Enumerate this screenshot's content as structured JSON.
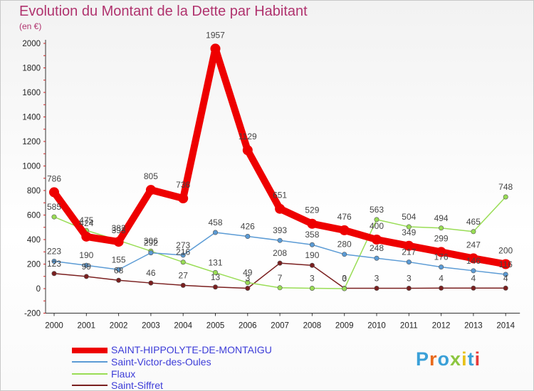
{
  "title": "Evolution du Montant de la Dette par Habitant",
  "subtitle": "(en €)",
  "brand": {
    "text": "Proxiti",
    "colors": [
      "#3aa0d8",
      "#e96a1a",
      "#3aa0d8",
      "#8cc63f",
      "#e8c21a",
      "#3aa0d8",
      "#e83a3a"
    ]
  },
  "chart_data": {
    "type": "line",
    "title": "Evolution du Montant de la Dette par Habitant",
    "subtitle": "(en €)",
    "xlabel": "",
    "ylabel": "",
    "x": [
      "2000",
      "2001",
      "2002",
      "2003",
      "2004",
      "2005",
      "2006",
      "2007",
      "2008",
      "2009",
      "2010",
      "2011",
      "2012",
      "2013",
      "2014"
    ],
    "ylim": [
      -200,
      2000
    ],
    "yticks": [
      -200,
      0,
      200,
      400,
      600,
      800,
      1000,
      1200,
      1400,
      1600,
      1800,
      2000
    ],
    "grid": false,
    "legend_position": "bottom-left",
    "series": [
      {
        "name": "SAINT-HIPPOLYTE-DE-MONTAIGU",
        "color": "#ee0000",
        "emphasis": true,
        "values": [
          786,
          424,
          382,
          805,
          736,
          1957,
          1129,
          651,
          529,
          476,
          400,
          349,
          299,
          247,
          200
        ]
      },
      {
        "name": "Saint-Victor-des-Oules",
        "color": "#5b9bd5",
        "emphasis": false,
        "values": [
          223,
          190,
          155,
          292,
          273,
          458,
          426,
          393,
          358,
          280,
          248,
          217,
          176,
          146,
          116
        ]
      },
      {
        "name": "Flaux",
        "color": "#99dd55",
        "emphasis": false,
        "values": [
          585,
          475,
          393,
          306,
          216,
          131,
          49,
          7,
          3,
          0,
          563,
          504,
          494,
          465,
          748
        ]
      },
      {
        "name": "Saint-Siffret",
        "color": "#7a1f1f",
        "emphasis": false,
        "values": [
          123,
          99,
          68,
          46,
          27,
          13,
          3,
          208,
          190,
          3,
          3,
          3,
          4,
          4,
          4
        ]
      }
    ]
  }
}
